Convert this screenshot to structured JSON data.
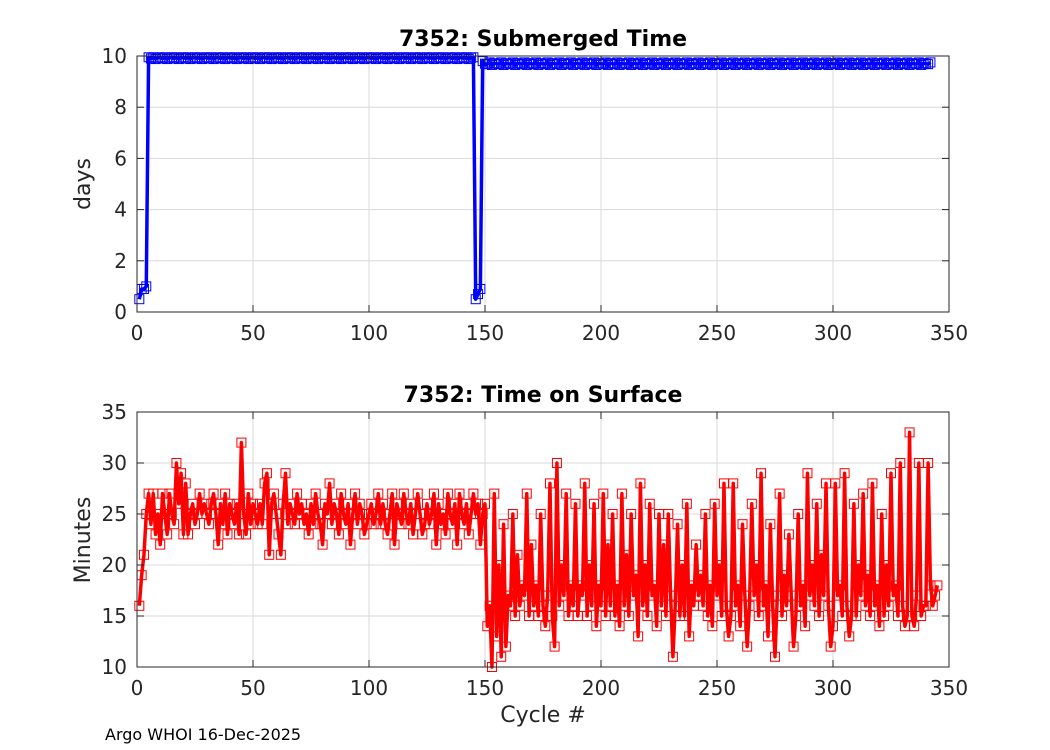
{
  "footer": "Argo WHOI 16-Dec-2025",
  "colors": {
    "series_top": "#0000ff",
    "series_bottom": "#ff0000",
    "grid": "#d9d9d9",
    "axis": "#262626"
  },
  "chart_data": [
    {
      "type": "line",
      "title": "7352: Submerged Time",
      "xlabel": "",
      "ylabel": "days",
      "xlim": [
        0,
        350
      ],
      "ylim": [
        0,
        10
      ],
      "xticks": [
        0,
        50,
        100,
        150,
        200,
        250,
        300,
        350
      ],
      "yticks": [
        0,
        2,
        4,
        6,
        8,
        10
      ],
      "grid": true,
      "marker": "square",
      "series": [
        {
          "color": "#0000ff",
          "segments": [
            {
              "x_start": 1,
              "x_end": 1,
              "values": [
                0.5
              ]
            },
            {
              "x_start": 2,
              "x_end": 2,
              "values": [
                0.9
              ]
            },
            {
              "x_start": 3,
              "x_end": 3,
              "values": [
                0.9
              ]
            },
            {
              "x_start": 4,
              "x_end": 4,
              "values": [
                1.0
              ]
            },
            {
              "x_start": 5,
              "x_end": 145,
              "pattern": [
                9.95,
                9.9,
                9.95,
                9.88,
                9.93
              ],
              "note_values_range": [
                9.85,
                9.97
              ]
            },
            {
              "x_start": 146,
              "x_end": 146,
              "values": [
                0.5
              ]
            },
            {
              "x_start": 147,
              "x_end": 147,
              "values": [
                0.7
              ]
            },
            {
              "x_start": 148,
              "x_end": 148,
              "values": [
                0.9
              ]
            },
            {
              "x_start": 149,
              "x_end": 149,
              "values": [
                9.8
              ]
            },
            {
              "x_start": 150,
              "x_end": 342,
              "pattern": [
                9.7,
                9.68,
                9.75,
                9.65,
                9.72
              ],
              "note_values_range": [
                9.6,
                9.8
              ]
            }
          ]
        }
      ]
    },
    {
      "type": "line",
      "title": "7352: Time on Surface",
      "xlabel": "Cycle #",
      "ylabel": "Minutes",
      "xlim": [
        0,
        350
      ],
      "ylim": [
        10,
        35
      ],
      "xticks": [
        0,
        50,
        100,
        150,
        200,
        250,
        300,
        350
      ],
      "yticks": [
        10,
        15,
        20,
        25,
        30,
        35
      ],
      "grid": true,
      "marker": "square",
      "series": [
        {
          "color": "#ff0000",
          "x_start": 1,
          "values": [
            16,
            19,
            21,
            25,
            27,
            24,
            27,
            23,
            25,
            22,
            27,
            25,
            23,
            27,
            25,
            24,
            30,
            26,
            29,
            23,
            28,
            23,
            25,
            26,
            24,
            25,
            27,
            25,
            26,
            25,
            24,
            26,
            27,
            25,
            22,
            26,
            24,
            27,
            23,
            26,
            25,
            24,
            26,
            23,
            32,
            25,
            23,
            27,
            24,
            26,
            25,
            24,
            26,
            24,
            28,
            29,
            21,
            26,
            27,
            25,
            23,
            21,
            26,
            29,
            24,
            26,
            25,
            24,
            27,
            25,
            26,
            24,
            25,
            23,
            26,
            24,
            27,
            25,
            24,
            22,
            26,
            25,
            28,
            24,
            26,
            25,
            23,
            27,
            25,
            24,
            26,
            22,
            25,
            27,
            24,
            26,
            25,
            23,
            24,
            25,
            26,
            24,
            25,
            27,
            24,
            26,
            24,
            23,
            25,
            27,
            22,
            26,
            25,
            24,
            27,
            25,
            24,
            26,
            23,
            25,
            27,
            25,
            23,
            24,
            26,
            24,
            25,
            27,
            22,
            26,
            24,
            25,
            23,
            27,
            25,
            24,
            26,
            22,
            27,
            25,
            24,
            26,
            23,
            25,
            27,
            25,
            26,
            22,
            25,
            26,
            14,
            16,
            10,
            27,
            13,
            20,
            11,
            24,
            12,
            17,
            16,
            25,
            15,
            21,
            16,
            18,
            17,
            27,
            15,
            22,
            16,
            18,
            15,
            25,
            16,
            14,
            17,
            28,
            15,
            12,
            30,
            16,
            20,
            17,
            27,
            15,
            18,
            16,
            26,
            15,
            18,
            17,
            28,
            15,
            20,
            16,
            26,
            14,
            18,
            16,
            27,
            15,
            22,
            16,
            25,
            15,
            18,
            14,
            27,
            16,
            21,
            15,
            25,
            17,
            19,
            13,
            28,
            16,
            20,
            15,
            26,
            17,
            18,
            14,
            25,
            16,
            22,
            15,
            25,
            17,
            11,
            16,
            24,
            15,
            20,
            15,
            26,
            13,
            18,
            16,
            22,
            17,
            19,
            16,
            25,
            15,
            18,
            14,
            26,
            17,
            20,
            15,
            28,
            16,
            13,
            15,
            28,
            16,
            18,
            14,
            24,
            17,
            12,
            16,
            26,
            17,
            20,
            15,
            29,
            16,
            18,
            13,
            24,
            16,
            11,
            17,
            27,
            15,
            19,
            16,
            23,
            17,
            12,
            15,
            25,
            16,
            18,
            14,
            29,
            17,
            20,
            16,
            26,
            15,
            21,
            17,
            28,
            16,
            12,
            14,
            28,
            17,
            18,
            15,
            29,
            16,
            13,
            15,
            26,
            15,
            20,
            17,
            27,
            16,
            19,
            15,
            28,
            16,
            18,
            14,
            25,
            15,
            20,
            16,
            29,
            17,
            18,
            15,
            30,
            16,
            14,
            15,
            33,
            15,
            14,
            17,
            30,
            15,
            16,
            16,
            30,
            18,
            16,
            17,
            18
          ]
        }
      ]
    }
  ]
}
